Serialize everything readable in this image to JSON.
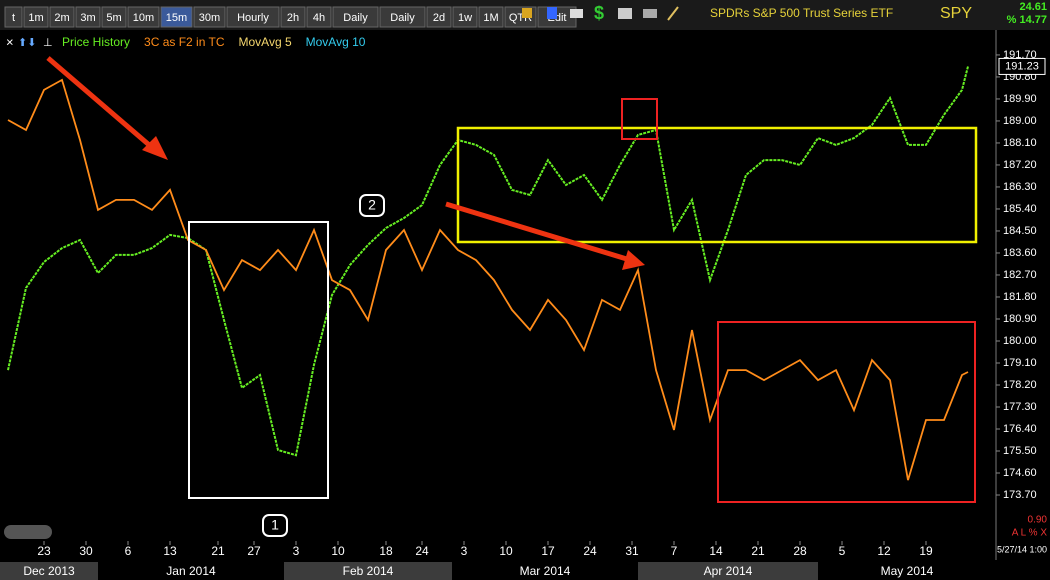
{
  "toolbar": {
    "buttons": [
      "t",
      "1m",
      "2m",
      "3m",
      "5m",
      "10m",
      "15m",
      "30m",
      "Hourly",
      "2h",
      "4h",
      "Daily",
      "Daily",
      "2d",
      "1w",
      "1M",
      "QTR",
      "Edit"
    ],
    "active": 6
  },
  "header": {
    "name": "SPDRs S&P 500 Trust Series ETF",
    "symbol": "SPY",
    "stat1": "24.61",
    "stat2": "% 14.77"
  },
  "footer": {
    "scale": "0.90",
    "controls": "A L % X",
    "timestamp": "5/27/14 1:00"
  },
  "chart_data": {
    "type": "line",
    "x": [
      "2013-12-17",
      "2013-12-20",
      "2013-12-23",
      "2013-12-26",
      "2013-12-29",
      "2014-01-01",
      "2014-01-04",
      "2014-01-07",
      "2014-01-10",
      "2014-01-13",
      "2014-01-16",
      "2014-01-19",
      "2014-01-22",
      "2014-01-25",
      "2014-01-28",
      "2014-01-31",
      "2014-02-03",
      "2014-02-06",
      "2014-02-09",
      "2014-02-12",
      "2014-02-15",
      "2014-02-18",
      "2014-02-21",
      "2014-02-24",
      "2014-02-27",
      "2014-03-02",
      "2014-03-05",
      "2014-03-08",
      "2014-03-11",
      "2014-03-14",
      "2014-03-17",
      "2014-03-20",
      "2014-03-23",
      "2014-03-26",
      "2014-03-29",
      "2014-04-01",
      "2014-04-04",
      "2014-04-07",
      "2014-04-10",
      "2014-04-13",
      "2014-04-16",
      "2014-04-19",
      "2014-04-22",
      "2014-04-25",
      "2014-04-28",
      "2014-05-01",
      "2014-05-04",
      "2014-05-07",
      "2014-05-10",
      "2014-05-13",
      "2014-05-16",
      "2014-05-19",
      "2014-05-22",
      "2014-05-25",
      "2014-05-26"
    ],
    "series": [
      {
        "name": "Price History",
        "color": "#66ee22",
        "values": [
          178.81,
          182.17,
          183.23,
          183.8,
          184.13,
          182.78,
          183.52,
          183.52,
          183.8,
          184.34,
          184.21,
          183.72,
          180.86,
          178.08,
          178.61,
          175.54,
          175.33,
          179.02,
          181.88,
          183.11,
          183.93,
          184.62,
          185.03,
          185.56,
          187.2,
          188.22,
          188.02,
          187.61,
          186.18,
          185.97,
          187.4,
          186.38,
          186.79,
          185.77,
          187.2,
          188.43,
          188.63,
          184.54,
          185.77,
          182.49,
          184.54,
          186.79,
          187.4,
          187.4,
          187.2,
          188.3,
          188.02,
          188.3,
          188.84,
          189.94,
          188.02,
          188.02,
          189.25,
          190.27,
          191.23
        ]
      },
      {
        "name": "3C as F2 in TC",
        "color": "#ff8c1a",
        "values": [
          189.04,
          188.63,
          190.27,
          190.68,
          188.22,
          185.36,
          185.77,
          185.77,
          185.36,
          186.18,
          184.13,
          183.72,
          182.08,
          183.31,
          182.9,
          183.72,
          182.9,
          184.54,
          182.49,
          182.08,
          180.86,
          183.72,
          184.54,
          182.9,
          184.54,
          183.72,
          183.31,
          182.49,
          181.27,
          180.45,
          181.68,
          180.86,
          179.63,
          181.68,
          181.27,
          182.9,
          178.81,
          176.36,
          180.45,
          176.77,
          178.81,
          178.81,
          178.4,
          178.81,
          179.22,
          178.4,
          178.81,
          177.17,
          179.22,
          178.4,
          174.31,
          176.77,
          176.77,
          178.61,
          178.73
        ]
      }
    ],
    "legend_extra": [
      {
        "name": "MovAvg 5",
        "color": "#f5d76e"
      },
      {
        "name": "MovAvg 10",
        "color": "#33ccee"
      }
    ],
    "xlim": [
      "2013-12-16",
      "2014-05-27"
    ],
    "xticks": [
      {
        "value": "2013-12-23",
        "label": "23"
      },
      {
        "value": "2013-12-30",
        "label": "30"
      },
      {
        "value": "2014-01-06",
        "label": "6"
      },
      {
        "value": "2014-01-13",
        "label": "13"
      },
      {
        "value": "2014-01-21",
        "label": "21"
      },
      {
        "value": "2014-01-27",
        "label": "27"
      },
      {
        "value": "2014-02-03",
        "label": "3"
      },
      {
        "value": "2014-02-10",
        "label": "10"
      },
      {
        "value": "2014-02-18",
        "label": "18"
      },
      {
        "value": "2014-02-24",
        "label": "24"
      },
      {
        "value": "2014-03-03",
        "label": "3"
      },
      {
        "value": "2014-03-10",
        "label": "10"
      },
      {
        "value": "2014-03-17",
        "label": "17"
      },
      {
        "value": "2014-03-24",
        "label": "24"
      },
      {
        "value": "2014-03-31",
        "label": "31"
      },
      {
        "value": "2014-04-07",
        "label": "7"
      },
      {
        "value": "2014-04-14",
        "label": "14"
      },
      {
        "value": "2014-04-21",
        "label": "21"
      },
      {
        "value": "2014-04-28",
        "label": "28"
      },
      {
        "value": "2014-05-05",
        "label": "5"
      },
      {
        "value": "2014-05-12",
        "label": "12"
      },
      {
        "value": "2014-05-19",
        "label": "19"
      }
    ],
    "month_ticks": [
      {
        "value": "2013-12-01",
        "label": "Dec 2013"
      },
      {
        "value": "2014-01-01",
        "label": "Jan 2014"
      },
      {
        "value": "2014-02-01",
        "label": "Feb 2014"
      },
      {
        "value": "2014-03-01",
        "label": "Mar 2014"
      },
      {
        "value": "2014-04-01",
        "label": "Apr 2014"
      },
      {
        "value": "2014-05-01",
        "label": "May 2014"
      }
    ],
    "ylim": [
      171.86,
      192.72
    ],
    "yticks": [
      {
        "value": 191.7,
        "label": "191.70"
      },
      {
        "value": 190.8,
        "label": "190.80"
      },
      {
        "value": 189.9,
        "label": "189.90"
      },
      {
        "value": 189,
        "label": "189.00"
      },
      {
        "value": 188.1,
        "label": "188.10"
      },
      {
        "value": 187.2,
        "label": "187.20"
      },
      {
        "value": 186.3,
        "label": "186.30"
      },
      {
        "value": 185.4,
        "label": "185.40"
      },
      {
        "value": 184.5,
        "label": "184.50"
      },
      {
        "value": 183.6,
        "label": "183.60"
      },
      {
        "value": 182.7,
        "label": "182.70"
      },
      {
        "value": 181.8,
        "label": "181.80"
      },
      {
        "value": 180.9,
        "label": "180.90"
      },
      {
        "value": 180,
        "label": "180.00"
      },
      {
        "value": 179.1,
        "label": "179.10"
      },
      {
        "value": 178.2,
        "label": "178.20"
      },
      {
        "value": 177.3,
        "label": "177.30"
      },
      {
        "value": 176.4,
        "label": "176.40"
      },
      {
        "value": 175.5,
        "label": "175.50"
      },
      {
        "value": 174.6,
        "label": "174.60"
      },
      {
        "value": 173.7,
        "label": "173.70"
      }
    ],
    "grid": false,
    "annotations": [
      "1",
      "2"
    ]
  }
}
